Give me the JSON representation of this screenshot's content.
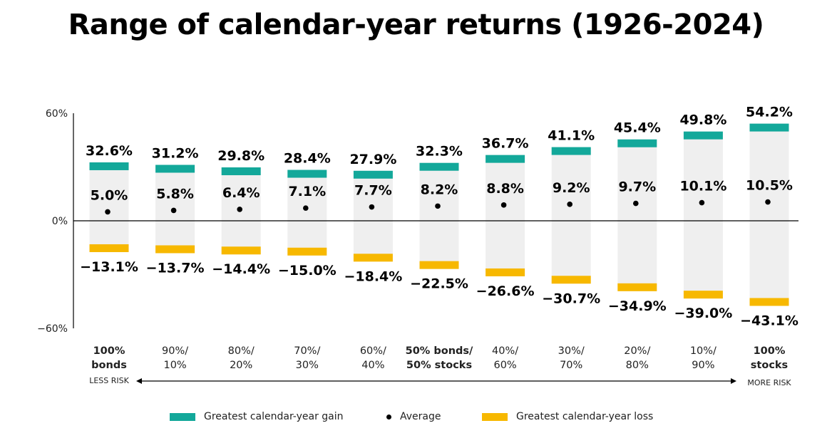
{
  "chart_data": {
    "type": "bar",
    "title": "Range of calendar-year returns (1926-2024)",
    "ylim": [
      -60,
      60
    ],
    "y_ticks": [
      "60%",
      "0%",
      "−60%"
    ],
    "y_tick_values": [
      60,
      0,
      -60
    ],
    "categories": [
      {
        "line1": "100%",
        "line2": "bonds",
        "bold": true
      },
      {
        "line1": "90%/",
        "line2": "10%",
        "bold": false
      },
      {
        "line1": "80%/",
        "line2": "20%",
        "bold": false
      },
      {
        "line1": "70%/",
        "line2": "30%",
        "bold": false
      },
      {
        "line1": "60%/",
        "line2": "40%",
        "bold": false
      },
      {
        "line1": "50% bonds/",
        "line2": "50% stocks",
        "bold": true
      },
      {
        "line1": "40%/",
        "line2": "60%",
        "bold": false
      },
      {
        "line1": "30%/",
        "line2": "70%",
        "bold": false
      },
      {
        "line1": "20%/",
        "line2": "80%",
        "bold": false
      },
      {
        "line1": "10%/",
        "line2": "90%",
        "bold": false
      },
      {
        "line1": "100%",
        "line2": "stocks",
        "bold": true
      }
    ],
    "series": [
      {
        "name": "Greatest calendar-year gain",
        "values": [
          32.6,
          31.2,
          29.8,
          28.4,
          27.9,
          32.3,
          36.7,
          41.1,
          45.4,
          49.8,
          54.2
        ],
        "labels": [
          "32.6%",
          "31.2%",
          "29.8%",
          "28.4%",
          "27.9%",
          "32.3%",
          "36.7%",
          "41.1%",
          "45.4%",
          "49.8%",
          "54.2%"
        ]
      },
      {
        "name": "Average",
        "values": [
          5.0,
          5.8,
          6.4,
          7.1,
          7.7,
          8.2,
          8.8,
          9.2,
          9.7,
          10.1,
          10.5
        ],
        "labels": [
          "5.0%",
          "5.8%",
          "6.4%",
          "7.1%",
          "7.7%",
          "8.2%",
          "8.8%",
          "9.2%",
          "9.7%",
          "10.1%",
          "10.5%"
        ]
      },
      {
        "name": "Greatest calendar-year loss",
        "values": [
          -13.1,
          -13.7,
          -14.4,
          -15.0,
          -18.4,
          -22.5,
          -26.6,
          -30.7,
          -34.9,
          -39.0,
          -43.1
        ],
        "labels": [
          "−13.1%",
          "−13.7%",
          "−14.4%",
          "−15.0%",
          "−18.4%",
          "−22.5%",
          "−26.6%",
          "−30.7%",
          "−34.9%",
          "−39.0%",
          "−43.1%"
        ]
      }
    ],
    "risk_left": "LESS RISK",
    "risk_right": "MORE RISK",
    "colors": {
      "gain": "#13a89a",
      "loss": "#f7b800",
      "range": "#efefef",
      "average": "#000000"
    },
    "legend_position": "bottom",
    "grid": false
  },
  "legend": {
    "gain": "Greatest calendar-year gain",
    "average": "Average",
    "loss": "Greatest calendar-year loss"
  }
}
